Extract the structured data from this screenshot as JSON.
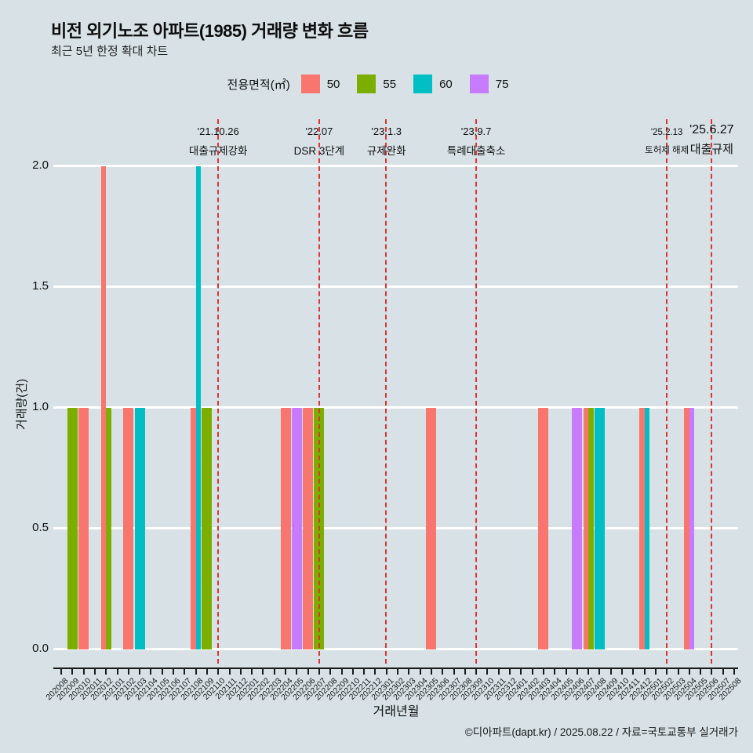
{
  "header": {
    "title": "비전 외기노조 아파트(1985) 거래량 변화 흐름",
    "subtitle": "최근 5년 한정 확대 차트"
  },
  "legend": {
    "label": "전용면적(㎡)",
    "items": [
      {
        "name": "50",
        "color": "#F8766D"
      },
      {
        "name": "55",
        "color": "#7CAE00"
      },
      {
        "name": "60",
        "color": "#00BFC4"
      },
      {
        "name": "75",
        "color": "#C77CFF"
      }
    ]
  },
  "footer": {
    "credit": "©디아파트(dapt.kr) / 2025.08.22 / 자료=국토교통부 실거래가"
  },
  "chart_data": {
    "type": "bar",
    "title": "비전 외기노조 아파트(1985) 거래량 변화 흐름",
    "xlabel": "거래년월",
    "ylabel": "거래량(건)",
    "ylim": [
      0,
      2
    ],
    "yticks": [
      {
        "v": 0.0,
        "label": "0.0"
      },
      {
        "v": 0.5,
        "label": "0.5"
      },
      {
        "v": 1.0,
        "label": "1.0"
      },
      {
        "v": 1.5,
        "label": "1.5"
      },
      {
        "v": 2.0,
        "label": "2.0"
      }
    ],
    "grid": true,
    "legend_position": "top",
    "categories": [
      "202008",
      "202009",
      "202010",
      "202011",
      "202012",
      "202101",
      "202102",
      "202103",
      "202104",
      "202105",
      "202106",
      "202107",
      "202108",
      "202109",
      "202110",
      "202111",
      "202112",
      "202201",
      "202202",
      "202203",
      "202204",
      "202205",
      "202206",
      "202207",
      "202208",
      "202209",
      "202210",
      "202211",
      "202212",
      "202301",
      "202302",
      "202303",
      "202304",
      "202305",
      "202306",
      "202307",
      "202308",
      "202309",
      "202310",
      "202311",
      "202312",
      "202401",
      "202402",
      "202403",
      "202404",
      "202405",
      "202406",
      "202407",
      "202408",
      "202409",
      "202410",
      "202411",
      "202412",
      "202501",
      "202502",
      "202503",
      "202504",
      "202505",
      "202506",
      "202507",
      "202508"
    ],
    "series": [
      {
        "name": "50",
        "color": "#F8766D",
        "points": [
          {
            "month": "202010",
            "value": 1
          },
          {
            "month": "202012",
            "value": 2
          },
          {
            "month": "202102",
            "value": 1
          },
          {
            "month": "202108",
            "value": 1
          },
          {
            "month": "202204",
            "value": 1
          },
          {
            "month": "202206",
            "value": 1
          },
          {
            "month": "202305",
            "value": 1
          },
          {
            "month": "202403",
            "value": 1
          },
          {
            "month": "202407",
            "value": 1
          },
          {
            "month": "202412",
            "value": 1
          },
          {
            "month": "202504",
            "value": 1
          }
        ]
      },
      {
        "name": "55",
        "color": "#7CAE00",
        "points": [
          {
            "month": "202009",
            "value": 1
          },
          {
            "month": "202012",
            "value": 1
          },
          {
            "month": "202109",
            "value": 1
          },
          {
            "month": "202207",
            "value": 1
          },
          {
            "month": "202407",
            "value": 1
          }
        ]
      },
      {
        "name": "60",
        "color": "#00BFC4",
        "points": [
          {
            "month": "202103",
            "value": 1
          },
          {
            "month": "202108",
            "value": 2
          },
          {
            "month": "202408",
            "value": 1
          },
          {
            "month": "202412",
            "value": 1
          }
        ]
      },
      {
        "name": "75",
        "color": "#C77CFF",
        "points": [
          {
            "month": "202205",
            "value": 1
          },
          {
            "month": "202406",
            "value": 1
          },
          {
            "month": "202504",
            "value": 1
          }
        ]
      }
    ],
    "events": [
      {
        "month": "202110",
        "date": "'21.10.26",
        "label": "대출규제강화",
        "size": "normal"
      },
      {
        "month": "202207",
        "date": "'22.07",
        "label": "DSR 3단계",
        "size": "normal"
      },
      {
        "month": "202301",
        "date": "'23.1.3",
        "label": "규제완화",
        "size": "normal"
      },
      {
        "month": "202309",
        "date": "'23.9.7",
        "label": "특례대출축소",
        "size": "normal"
      },
      {
        "month": "202502",
        "date": "'25.2.13",
        "label": "토허제 해제",
        "size": "small"
      },
      {
        "month": "202506",
        "date": "'25.6.27",
        "label": "대출규제",
        "size": "large"
      }
    ],
    "event_line_color": "#da3434",
    "background_color": "#d7e1e6"
  }
}
